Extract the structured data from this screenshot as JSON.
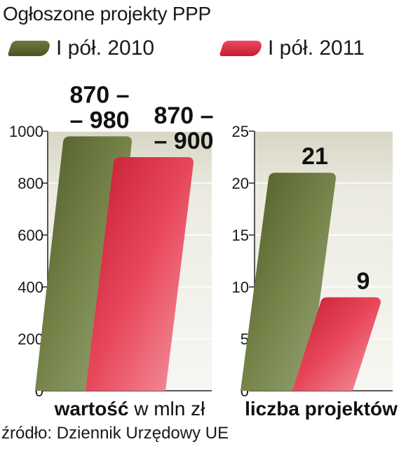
{
  "title": "Ogłoszone projekty PPP",
  "legend": [
    {
      "label": "I pół. 2010",
      "color": "#56622c"
    },
    {
      "label": "I pół. 2011",
      "color": "#d92a3e"
    }
  ],
  "source": "źródło: Dziennik Urzędowy UE",
  "chart_data": [
    {
      "type": "bar",
      "xlabel_bold": "wartość",
      "xlabel_rest": " w mln zł",
      "ylim": [
        0,
        1000
      ],
      "yticks": [
        "0",
        "200",
        "400",
        "600",
        "800",
        "1000"
      ],
      "series": [
        {
          "name": "I pół. 2010",
          "value": 980,
          "range": [
            870,
            980
          ],
          "label_lines": [
            "870 –",
            "– 980"
          ]
        },
        {
          "name": "I pół. 2011",
          "value": 900,
          "range": [
            870,
            900
          ],
          "label_lines": [
            "870 –",
            "– 900"
          ]
        }
      ],
      "grid": true
    },
    {
      "type": "bar",
      "xlabel_bold": "liczba projektów",
      "xlabel_rest": "",
      "ylim": [
        0,
        25
      ],
      "yticks": [
        "0",
        "5",
        "10",
        "15",
        "20",
        "25"
      ],
      "series": [
        {
          "name": "I pół. 2010",
          "value": 21,
          "label_lines": [
            "21"
          ]
        },
        {
          "name": "I pół. 2011",
          "value": 9,
          "label_lines": [
            "9"
          ]
        }
      ],
      "grid": true
    }
  ]
}
